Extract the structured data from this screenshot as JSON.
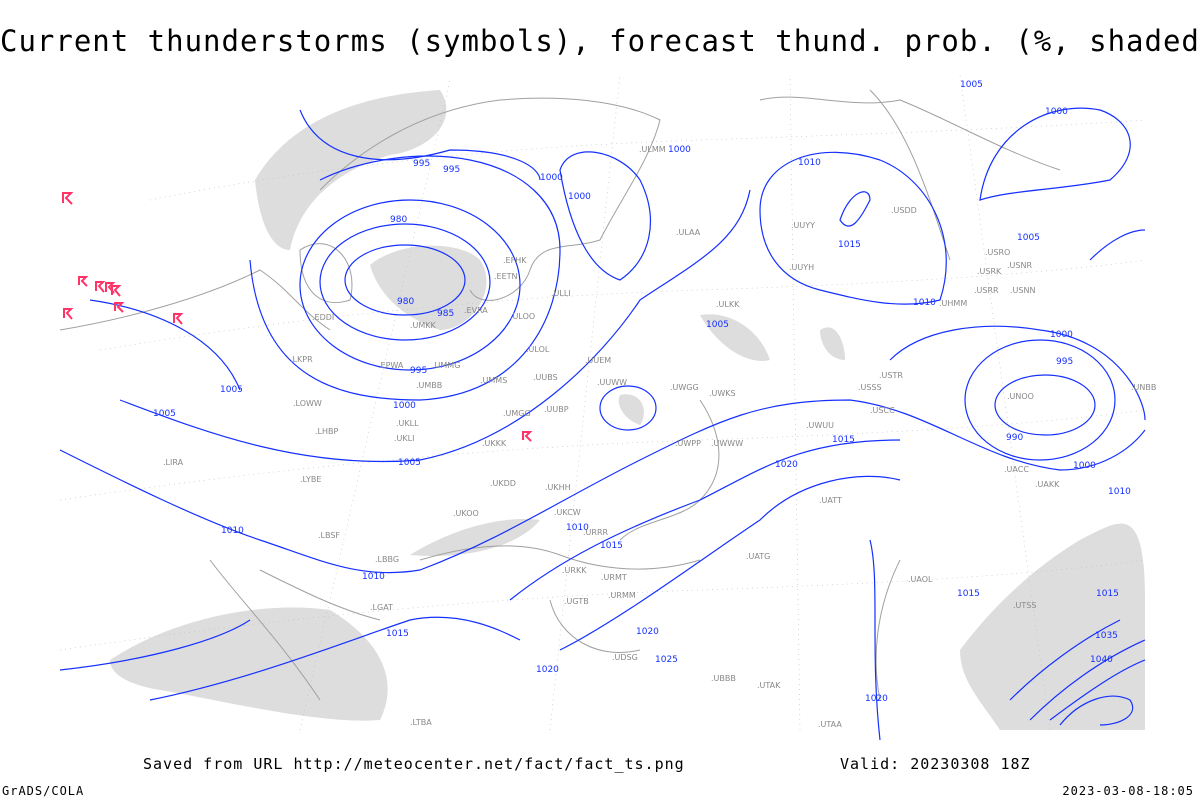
{
  "title": "Current thunderstorms (symbols), forecast thund. prob. (%, shaded)",
  "footer": {
    "source": "Saved from URL http://meteocenter.net/fact/fact_ts.png",
    "valid": "Valid: 20230308 18Z",
    "software": "GrADS/COLA",
    "timestamp": "2023-03-08-18:05"
  },
  "colors": {
    "isobars": "#1530ff",
    "thunderstorm_symbol": "#ff3366",
    "shading": "#dddddd",
    "coastlines": "#a0a0a0"
  },
  "legend_icons": {
    "thunderstorm": "thunderstorm-symbol-icon"
  },
  "isobar_labels": [
    "980",
    "980",
    "985",
    "995",
    "995",
    "995",
    "1000",
    "1000",
    "1000",
    "1000",
    "1005",
    "1005",
    "1005",
    "1005",
    "1010",
    "1010",
    "1010",
    "1010",
    "1015",
    "1015",
    "1015",
    "1015",
    "1020",
    "1020",
    "1000",
    "995",
    "990",
    "1000",
    "1005",
    "1010",
    "1015",
    "1020",
    "1025",
    "1000",
    "1005",
    "1010",
    "1015",
    "1020",
    "1035",
    "1040"
  ],
  "stations": [
    "EPWA",
    "UMMG",
    "UMBB",
    "UKLL",
    "UKLI",
    "UKKK",
    "UMMS",
    "UMGG",
    "UUBP",
    "UUBS",
    "ULOL",
    "ULOO",
    "EVRA",
    "EETN",
    "EFHK",
    "UMKK",
    "EDDI",
    "LKPR",
    "LOWW",
    "LHBP",
    "LIRA",
    "LYBE",
    "LBSF",
    "LBBG",
    "LGAT",
    "LTBA",
    "UKOO",
    "UKHH",
    "UKDD",
    "UKCW",
    "URRR",
    "URKK",
    "URMT",
    "URMM",
    "UGTB",
    "UBBB",
    "UDSG",
    "UUEM",
    "UUWW",
    "UWGG",
    "UWPP",
    "UWKS",
    "UWWW",
    "UWUU",
    "UUYY",
    "ULLI",
    "ULAA",
    "ULMM",
    "UUYH",
    "USSS",
    "USCC",
    "USTR",
    "USRR",
    "USNN",
    "UNOO",
    "UNBB",
    "UATT",
    "UACC",
    "UAKK",
    "UAOL",
    "UATG",
    "UTAK",
    "UTAA",
    "UTSS",
    "ULKK",
    "USRK",
    "USNR",
    "USRO",
    "USDD",
    "UHMM"
  ]
}
